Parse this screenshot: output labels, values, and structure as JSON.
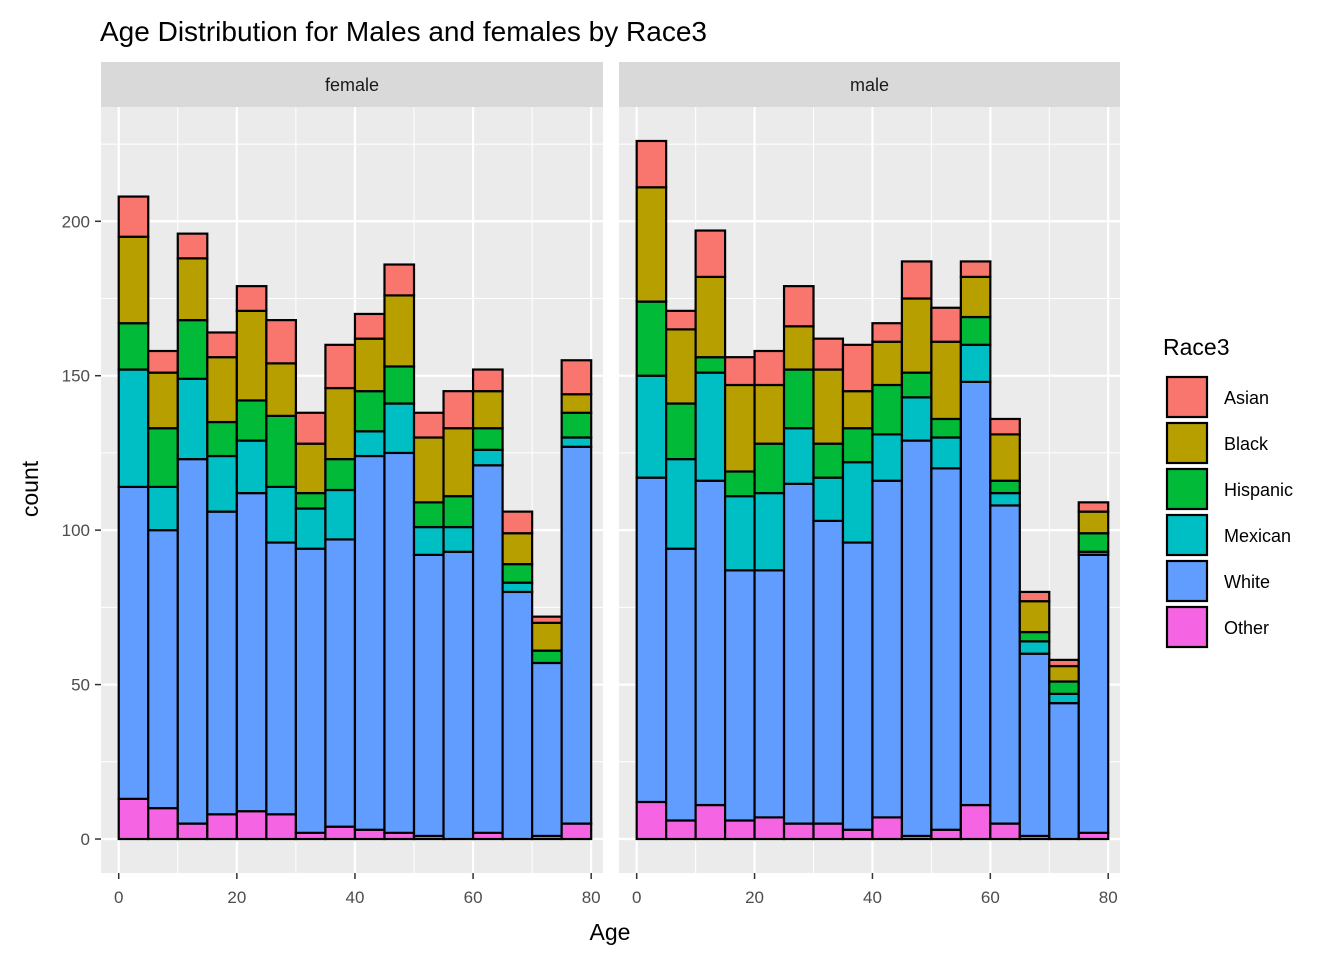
{
  "chart_data": {
    "type": "bar",
    "subtype": "stacked-histogram-faceted",
    "title": "Age Distribution for Males and females by Race3",
    "xlabel": "Age",
    "ylabel": "count",
    "xlim": [
      -3,
      82
    ],
    "ylim": [
      -11,
      237
    ],
    "xticks": [
      0,
      20,
      40,
      60,
      80
    ],
    "yticks": [
      0,
      50,
      100,
      150,
      200
    ],
    "grid": true,
    "bin_width": 5,
    "bins": [
      [
        0,
        5
      ],
      [
        5,
        10
      ],
      [
        10,
        15
      ],
      [
        15,
        20
      ],
      [
        20,
        25
      ],
      [
        25,
        30
      ],
      [
        30,
        35
      ],
      [
        35,
        40
      ],
      [
        40,
        45
      ],
      [
        45,
        50
      ],
      [
        50,
        55
      ],
      [
        55,
        60
      ],
      [
        60,
        65
      ],
      [
        65,
        70
      ],
      [
        70,
        75
      ],
      [
        75,
        80
      ]
    ],
    "legend": {
      "title": "Race3",
      "placement": "right",
      "entries": [
        {
          "name": "Asian",
          "color": "#F8766D"
        },
        {
          "name": "Black",
          "color": "#B79F00"
        },
        {
          "name": "Hispanic",
          "color": "#00BA38"
        },
        {
          "name": "Mexican",
          "color": "#00BFC4"
        },
        {
          "name": "White",
          "color": "#619CFF"
        },
        {
          "name": "Other",
          "color": "#F564E3"
        }
      ]
    },
    "stack_order_bottom_to_top": [
      "Other",
      "White",
      "Mexican",
      "Hispanic",
      "Black",
      "Asian"
    ],
    "facets": [
      {
        "label": "female",
        "series": [
          {
            "name": "Other",
            "values": [
              13,
              10,
              5,
              8,
              9,
              8,
              2,
              4,
              3,
              2,
              1,
              0,
              2,
              0,
              1,
              5
            ]
          },
          {
            "name": "White",
            "values": [
              101,
              90,
              118,
              98,
              103,
              88,
              92,
              93,
              121,
              123,
              91,
              93,
              119,
              80,
              56,
              122
            ]
          },
          {
            "name": "Mexican",
            "values": [
              38,
              14,
              26,
              18,
              17,
              18,
              13,
              16,
              8,
              16,
              9,
              8,
              5,
              3,
              0,
              3
            ]
          },
          {
            "name": "Hispanic",
            "values": [
              15,
              19,
              19,
              11,
              13,
              23,
              5,
              10,
              13,
              12,
              8,
              10,
              7,
              6,
              4,
              8
            ]
          },
          {
            "name": "Black",
            "values": [
              28,
              18,
              20,
              21,
              29,
              17,
              16,
              23,
              17,
              23,
              21,
              22,
              12,
              10,
              9,
              6
            ]
          },
          {
            "name": "Asian",
            "values": [
              13,
              7,
              8,
              8,
              8,
              14,
              10,
              14,
              8,
              10,
              8,
              12,
              7,
              7,
              2,
              11
            ]
          }
        ]
      },
      {
        "label": "male",
        "series": [
          {
            "name": "Other",
            "values": [
              12,
              6,
              11,
              6,
              7,
              5,
              5,
              3,
              7,
              1,
              3,
              11,
              5,
              1,
              0,
              2
            ]
          },
          {
            "name": "White",
            "values": [
              105,
              88,
              105,
              81,
              80,
              110,
              98,
              93,
              109,
              128,
              117,
              137,
              103,
              59,
              44,
              90
            ]
          },
          {
            "name": "Mexican",
            "values": [
              33,
              29,
              35,
              24,
              25,
              18,
              14,
              26,
              15,
              14,
              10,
              12,
              4,
              4,
              3,
              1
            ]
          },
          {
            "name": "Hispanic",
            "values": [
              24,
              18,
              5,
              8,
              16,
              19,
              11,
              11,
              16,
              8,
              6,
              9,
              4,
              3,
              4,
              6
            ]
          },
          {
            "name": "Black",
            "values": [
              37,
              24,
              26,
              28,
              19,
              14,
              24,
              12,
              14,
              24,
              25,
              13,
              15,
              10,
              5,
              7
            ]
          },
          {
            "name": "Asian",
            "values": [
              15,
              6,
              15,
              9,
              11,
              13,
              10,
              15,
              6,
              12,
              11,
              5,
              5,
              3,
              2,
              3
            ]
          }
        ]
      }
    ]
  }
}
